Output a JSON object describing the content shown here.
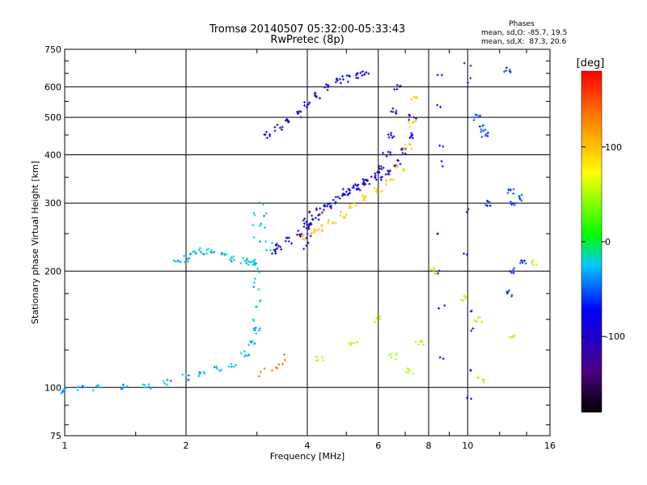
{
  "chart_data": {
    "type": "scatter",
    "title": "Tromsø 20140507 05:32:00-05:33:43",
    "subtitle": "RwPretec (8p)",
    "xlabel": "Frequency [MHz]",
    "ylabel": "Stationary phase Virtual Height [km]",
    "x_scale": "log",
    "y_scale": "log",
    "xlim": [
      1,
      16
    ],
    "ylim": [
      75,
      750
    ],
    "x_ticks": [
      1,
      2,
      4,
      6,
      8,
      10,
      16
    ],
    "y_ticks": [
      75,
      100,
      200,
      300,
      400,
      500,
      600,
      750
    ],
    "grid": true,
    "phase_stats": {
      "heading": "Phases",
      "line1": "mean, sd,O: -85.7, 19.5",
      "line2": "mean, sd,X:  87.3, 20.6"
    },
    "colorbar": {
      "label": "[deg]",
      "range": [
        -180,
        180
      ],
      "ticks": [
        {
          "value": 100,
          "label": "100"
        },
        {
          "value": 0,
          "label": "0"
        },
        {
          "value": -100,
          "label": "-100"
        }
      ]
    },
    "series": [
      {
        "x": [
          1.0,
          1.1,
          1.2,
          1.4,
          1.6,
          1.8,
          2.0,
          2.2,
          2.4,
          2.6,
          2.8,
          2.9,
          3.0
        ],
        "y": [
          98,
          100,
          100,
          100,
          101,
          103,
          106,
          108,
          111,
          115,
          122,
          130,
          140
        ],
        "phase": -65
      },
      {
        "x": [
          3.0,
          3.0,
          3.0,
          3.0,
          3.0,
          3.0,
          3.0
        ],
        "y": [
          140,
          150,
          160,
          170,
          180,
          190,
          200
        ],
        "phase": -55
      },
      {
        "x": [
          1.9,
          2.0,
          2.1,
          2.2,
          2.3,
          2.5,
          2.6,
          2.8,
          2.9,
          3.0
        ],
        "y": [
          212,
          215,
          222,
          225,
          225,
          220,
          215,
          212,
          210,
          212
        ],
        "phase": -55
      },
      {
        "x": [
          3.0,
          3.0,
          3.0,
          3.1,
          3.1,
          3.1,
          3.2,
          3.2
        ],
        "y": [
          240,
          260,
          280,
          300,
          280,
          260,
          240,
          225
        ],
        "phase": -60
      },
      {
        "x": [
          3.3,
          3.4,
          3.6,
          3.8,
          4.0,
          4.2,
          4.5,
          4.8,
          5.0,
          5.3,
          5.6,
          5.9,
          6.1,
          6.3,
          6.5,
          6.6,
          6.7
        ],
        "y": [
          225,
          232,
          240,
          250,
          262,
          275,
          292,
          310,
          320,
          330,
          340,
          355,
          370,
          400,
          450,
          520,
          600
        ],
        "phase": -115
      },
      {
        "x": [
          4.0,
          4.3,
          4.6,
          5.0,
          5.3,
          5.6,
          6.0,
          6.3,
          6.7,
          7.0,
          7.2,
          7.3
        ],
        "y": [
          268,
          285,
          300,
          320,
          330,
          340,
          350,
          360,
          380,
          410,
          450,
          500
        ],
        "phase": -110
      },
      {
        "x": [
          3.9,
          4.1,
          4.3,
          4.6,
          4.9,
          5.2,
          5.6,
          6.0,
          6.4,
          6.8,
          7.1,
          7.3,
          7.4
        ],
        "y": [
          245,
          252,
          258,
          268,
          280,
          295,
          310,
          322,
          340,
          370,
          420,
          480,
          560
        ],
        "phase": 95
      },
      {
        "x": [
          3.2,
          3.4,
          3.6,
          3.8,
          4.0,
          4.2,
          4.5,
          4.8,
          5.0,
          5.3,
          5.6
        ],
        "y": [
          450,
          470,
          490,
          510,
          540,
          570,
          600,
          620,
          630,
          640,
          645
        ],
        "phase": -110
      },
      {
        "x": [
          3.1,
          3.2,
          3.3,
          3.4,
          3.45
        ],
        "y": [
          108,
          110,
          112,
          115,
          120
        ],
        "phase": 140
      },
      {
        "x": [
          4.0,
          4.0,
          4.0,
          4.0,
          4.0,
          4.0
        ],
        "y": [
          230,
          240,
          250,
          260,
          270,
          280
        ],
        "phase": -115
      },
      {
        "x": [
          8.5,
          8.5,
          8.5,
          8.5,
          8.6,
          8.6,
          8.6,
          8.6
        ],
        "y": [
          650,
          530,
          420,
          380,
          250,
          200,
          160,
          120
        ],
        "phase": -110
      },
      {
        "x": [
          10.0,
          10.0,
          10.0,
          10.0,
          10.1,
          10.1,
          10.0,
          10.0
        ],
        "y": [
          680,
          620,
          290,
          220,
          160,
          140,
          110,
          95
        ],
        "phase": -105
      },
      {
        "x": [
          10.6,
          10.8,
          11.0,
          11.2,
          12.5,
          12.8,
          13.5,
          13.7,
          13.0,
          12.8,
          12.7
        ],
        "y": [
          500,
          470,
          450,
          300,
          660,
          320,
          310,
          210,
          300,
          200,
          175
        ],
        "phase": -90
      },
      {
        "x": [
          4.3,
          5.2,
          6.0,
          6.5,
          7.2,
          7.6,
          8.2,
          9.8,
          10.6,
          10.8,
          12.8,
          14.5
        ],
        "y": [
          118,
          130,
          150,
          120,
          110,
          130,
          200,
          170,
          150,
          105,
          135,
          210
        ],
        "phase": 40
      }
    ]
  }
}
